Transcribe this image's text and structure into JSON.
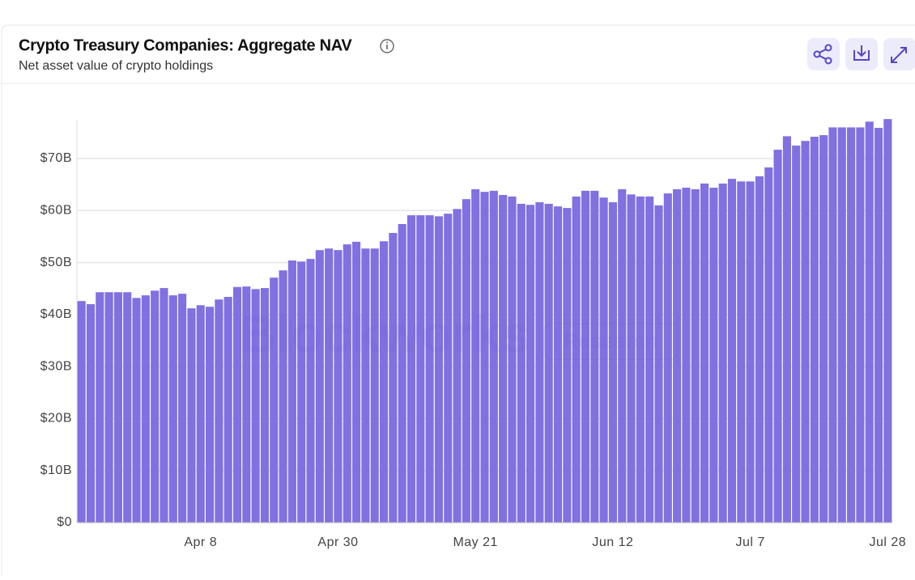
{
  "header": {
    "title": "Crypto Treasury Companies: Aggregate NAV",
    "subtitle": "Net asset value of crypto holdings"
  },
  "watermark": {
    "brand": "Blockworks",
    "tag": "Research"
  },
  "chart_data": {
    "type": "bar",
    "color": "#8070e0",
    "grid": true,
    "categories": [
      null,
      null,
      null,
      null,
      null,
      null,
      null,
      null,
      null,
      null,
      null,
      null,
      null,
      "Apr 8",
      null,
      null,
      null,
      null,
      null,
      null,
      null,
      null,
      null,
      null,
      null,
      null,
      null,
      null,
      "Apr 30",
      null,
      null,
      null,
      null,
      null,
      null,
      null,
      null,
      null,
      null,
      null,
      null,
      null,
      null,
      "May 21",
      null,
      null,
      null,
      null,
      null,
      null,
      null,
      null,
      null,
      null,
      null,
      null,
      null,
      null,
      "Jun 12",
      null,
      null,
      null,
      null,
      null,
      null,
      null,
      null,
      null,
      null,
      null,
      null,
      null,
      null,
      "Jul 7",
      null,
      null,
      null,
      null,
      null,
      null,
      null,
      null,
      null,
      null,
      null,
      null,
      null,
      null,
      "Jul 28"
    ],
    "values": [
      42.6,
      42.0,
      44.3,
      44.3,
      44.3,
      44.3,
      43.2,
      43.7,
      44.6,
      45.1,
      43.7,
      44.0,
      41.2,
      41.8,
      41.5,
      42.9,
      43.4,
      45.3,
      45.4,
      44.9,
      45.1,
      47.1,
      48.5,
      50.4,
      50.2,
      50.7,
      52.4,
      52.7,
      52.4,
      53.5,
      54.0,
      52.7,
      52.7,
      54.1,
      55.7,
      57.4,
      59.1,
      59.1,
      59.1,
      58.9,
      59.4,
      60.3,
      62.2,
      64.1,
      63.6,
      63.8,
      63.0,
      62.7,
      61.3,
      61.1,
      61.6,
      61.3,
      60.8,
      60.5,
      62.7,
      63.8,
      63.8,
      62.5,
      61.6,
      64.1,
      63.1,
      62.7,
      62.7,
      61.0,
      63.3,
      64.1,
      64.4,
      64.1,
      65.2,
      64.4,
      65.2,
      66.1,
      65.6,
      65.6,
      66.6,
      68.3,
      71.7,
      74.3,
      72.5,
      73.4,
      74.2,
      74.5,
      76.0,
      76.0,
      76.0,
      76.0,
      77.1,
      75.9,
      77.6
    ],
    "ylim": [
      0,
      78
    ],
    "yticks": [
      {
        "value": 0,
        "label": "$0"
      },
      {
        "value": 10,
        "label": "$10B"
      },
      {
        "value": 20,
        "label": "$20B"
      },
      {
        "value": 30,
        "label": "$30B"
      },
      {
        "value": 40,
        "label": "$40B"
      },
      {
        "value": 50,
        "label": "$50B"
      },
      {
        "value": 60,
        "label": "$60B"
      },
      {
        "value": 70,
        "label": "$70B"
      }
    ]
  }
}
